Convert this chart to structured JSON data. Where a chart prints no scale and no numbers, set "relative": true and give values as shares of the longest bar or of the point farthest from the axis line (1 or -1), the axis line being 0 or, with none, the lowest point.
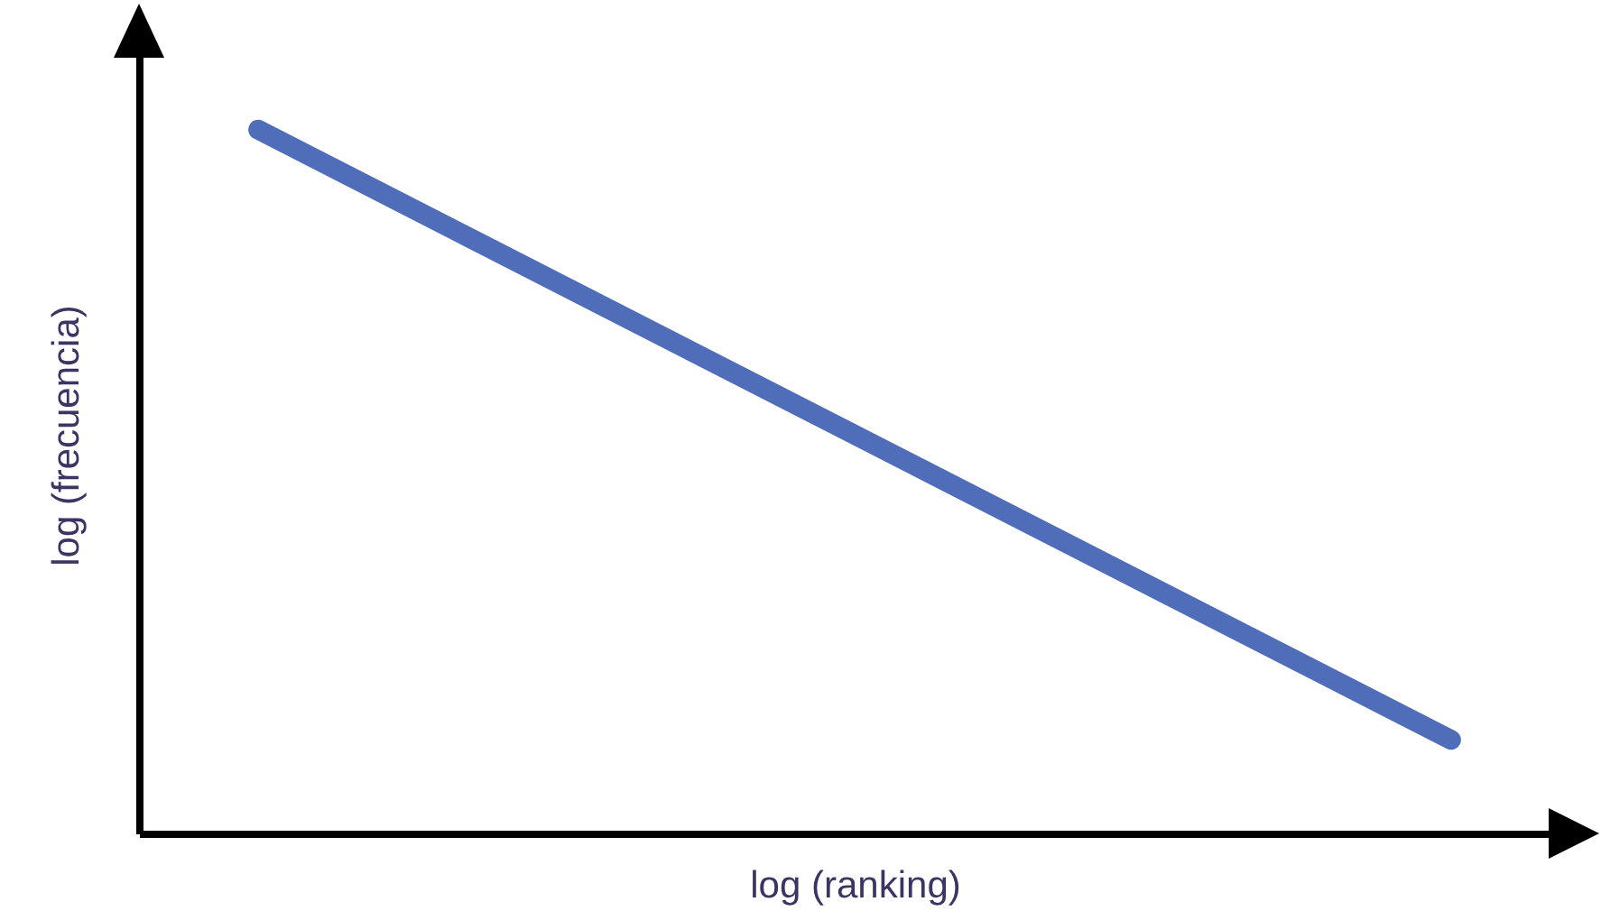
{
  "chart_data": {
    "type": "line",
    "xlabel": "log (ranking)",
    "ylabel": "log (frecuencia)",
    "relative": true,
    "categories": [
      null,
      null
    ],
    "series": [
      {
        "color": "#4f6db8",
        "values": [
          1,
          0.133
        ]
      }
    ]
  }
}
